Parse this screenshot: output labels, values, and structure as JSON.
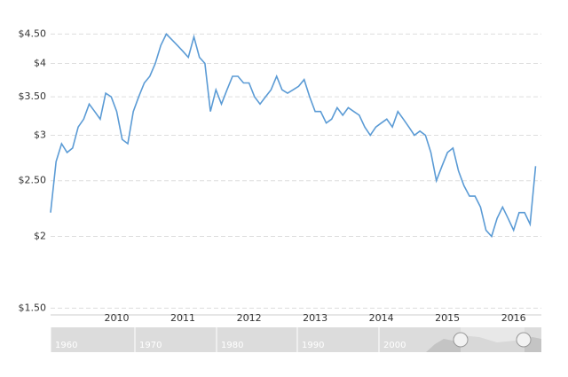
{
  "chart_data": {
    "type": "line",
    "x": [
      2009,
      2009.083,
      2009.167,
      2009.25,
      2009.333,
      2009.417,
      2009.5,
      2009.583,
      2009.667,
      2009.75,
      2009.833,
      2009.917,
      2010,
      2010.083,
      2010.167,
      2010.25,
      2010.333,
      2010.417,
      2010.5,
      2010.583,
      2010.667,
      2010.75,
      2010.833,
      2010.917,
      2011,
      2011.083,
      2011.167,
      2011.25,
      2011.333,
      2011.417,
      2011.5,
      2011.583,
      2011.667,
      2011.75,
      2011.833,
      2011.917,
      2012,
      2012.083,
      2012.167,
      2012.25,
      2012.333,
      2012.417,
      2012.5,
      2012.583,
      2012.667,
      2012.75,
      2012.833,
      2012.917,
      2013,
      2013.083,
      2013.167,
      2013.25,
      2013.333,
      2013.417,
      2013.5,
      2013.583,
      2013.667,
      2013.75,
      2013.833,
      2013.917,
      2014,
      2014.083,
      2014.167,
      2014.25,
      2014.333,
      2014.417,
      2014.5,
      2014.583,
      2014.667,
      2014.75,
      2014.833,
      2014.917,
      2015,
      2015.083,
      2015.167,
      2015.25,
      2015.333,
      2015.417,
      2015.5,
      2015.583,
      2015.667,
      2015.75,
      2015.833,
      2015.917,
      2016,
      2016.083,
      2016.167,
      2016.25,
      2016.333
    ],
    "series": [
      {
        "color": "#5b9bd5",
        "values": [
          2.2,
          2.7,
          2.9,
          2.8,
          2.85,
          3.1,
          3.2,
          3.4,
          3.3,
          3.2,
          3.55,
          3.5,
          3.3,
          2.95,
          2.9,
          3.3,
          3.5,
          3.7,
          3.8,
          4.0,
          4.3,
          4.5,
          4.4,
          4.3,
          4.2,
          4.1,
          4.45,
          4.1,
          4.0,
          3.3,
          3.6,
          3.4,
          3.6,
          3.8,
          3.8,
          3.7,
          3.7,
          3.5,
          3.4,
          3.5,
          3.6,
          3.8,
          3.6,
          3.55,
          3.6,
          3.65,
          3.75,
          3.5,
          3.3,
          3.3,
          3.15,
          3.2,
          3.35,
          3.25,
          3.35,
          3.3,
          3.25,
          3.1,
          3.0,
          3.1,
          3.15,
          3.2,
          3.1,
          3.3,
          3.2,
          3.1,
          3.0,
          3.05,
          3.0,
          2.8,
          2.5,
          2.65,
          2.8,
          2.85,
          2.6,
          2.45,
          2.35,
          2.35,
          2.25,
          2.05,
          2.0,
          2.15,
          2.25,
          2.15,
          2.05,
          2.2,
          2.2,
          2.1,
          2.65
        ]
      }
    ],
    "xlim": [
      2009,
      2016.42
    ],
    "xticks": [
      2010,
      2011,
      2012,
      2013,
      2014,
      2015,
      2016
    ],
    "ylim": [
      1.46,
      4.72
    ],
    "yticks": [
      {
        "value": 1.5,
        "label": "$1.50"
      },
      {
        "value": 2,
        "label": "$2"
      },
      {
        "value": 2.5,
        "label": "$2.50"
      },
      {
        "value": 3,
        "label": "$3"
      },
      {
        "value": 3.5,
        "label": "$3.50"
      },
      {
        "value": 4,
        "label": "$4"
      },
      {
        "value": 4.5,
        "label": "$4.50"
      }
    ],
    "log_y": true,
    "grid": true,
    "navigator_labels": [
      "1960",
      "1970",
      "1980",
      "1990",
      "2000"
    ]
  }
}
